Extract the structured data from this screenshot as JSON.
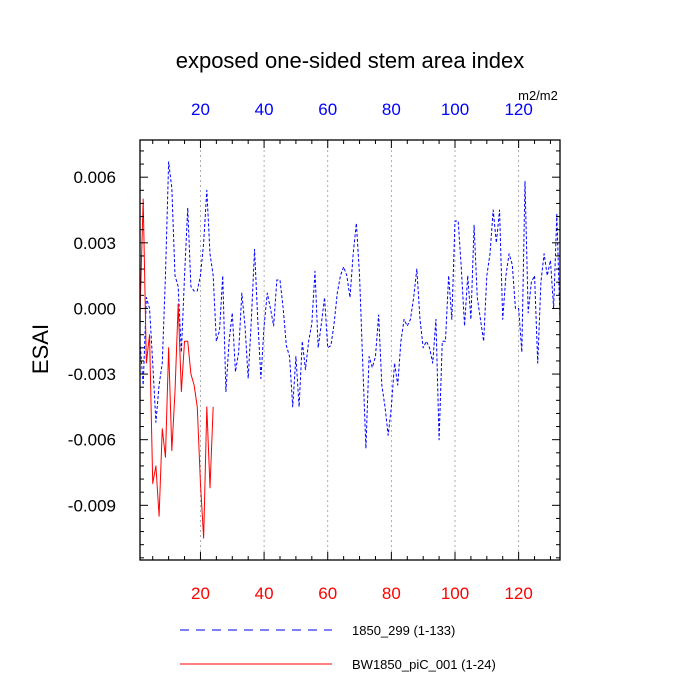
{
  "chart_data": {
    "type": "line",
    "title": "exposed one-sided stem area index",
    "ylabel": "ESAI",
    "units": "m2/m2",
    "xlim": [
      1,
      133
    ],
    "ylim": [
      -0.0115,
      0.0077
    ],
    "yticks": [
      0.006,
      0.003,
      0.0,
      -0.003,
      -0.006,
      -0.009
    ],
    "ytick_labels": [
      "0.006",
      "0.003",
      "0.000",
      "-0.003",
      "-0.006",
      "-0.009"
    ],
    "xticks": [
      20,
      40,
      60,
      80,
      100,
      120
    ],
    "xtick_labels": [
      "20",
      "40",
      "60",
      "80",
      "100",
      "120"
    ],
    "series": [
      {
        "name": "1850_299 (1-133)",
        "color": "#0000ff",
        "style": "dashed",
        "x": [
          1,
          2,
          3,
          4,
          5,
          6,
          7,
          8,
          9,
          10,
          11,
          12,
          13,
          14,
          15,
          16,
          17,
          18,
          19,
          20,
          21,
          22,
          23,
          24,
          25,
          26,
          27,
          28,
          29,
          30,
          31,
          32,
          33,
          34,
          35,
          36,
          37,
          38,
          39,
          40,
          41,
          42,
          43,
          44,
          45,
          46,
          47,
          48,
          49,
          50,
          51,
          52,
          53,
          54,
          55,
          56,
          57,
          58,
          59,
          60,
          61,
          62,
          63,
          64,
          65,
          66,
          67,
          68,
          69,
          70,
          71,
          72,
          73,
          74,
          75,
          76,
          77,
          78,
          79,
          80,
          81,
          82,
          83,
          84,
          85,
          86,
          87,
          88,
          89,
          90,
          91,
          92,
          93,
          94,
          95,
          96,
          97,
          98,
          99,
          100,
          101,
          102,
          103,
          104,
          105,
          106,
          107,
          108,
          109,
          110,
          111,
          112,
          113,
          114,
          115,
          116,
          117,
          118,
          119,
          120,
          121,
          122,
          123,
          124,
          125,
          126,
          127,
          128,
          129,
          130,
          131,
          132,
          133
        ],
        "values": [
          -0.0015,
          -0.0035,
          0.0005,
          0.0,
          -0.0025,
          -0.0052,
          -0.0035,
          -0.0025,
          0.0015,
          0.0067,
          0.0055,
          0.0015,
          0.001,
          -0.002,
          0.0015,
          0.0046,
          0.001,
          0.0008,
          0.0008,
          0.0015,
          0.003,
          0.0054,
          0.0025,
          0.0015,
          -0.0015,
          -0.001,
          0.0015,
          -0.0038,
          -0.0015,
          -0.0002,
          -0.0029,
          -0.002,
          0.0007,
          -0.0008,
          -0.0032,
          -0.0005,
          0.0027,
          -0.0005,
          -0.0032,
          -0.0008,
          0.0007,
          0.0,
          -0.0008,
          0.0013,
          0.0013,
          0.0,
          -0.0017,
          -0.0022,
          -0.0045,
          -0.0022,
          -0.0045,
          -0.0015,
          -0.0028,
          -0.0015,
          -0.0007,
          0.0017,
          -0.0018,
          -0.0007,
          0.0005,
          -0.0018,
          -0.0017,
          -0.0007,
          0.0007,
          0.0015,
          0.0019,
          0.0015,
          0.0005,
          0.0025,
          0.0039,
          0.0015,
          -0.0025,
          -0.0064,
          -0.0022,
          -0.0027,
          -0.0022,
          -0.0003,
          -0.0035,
          -0.0045,
          -0.0058,
          -0.0045,
          -0.0025,
          -0.0035,
          -0.0015,
          -0.0005,
          -0.0008,
          -0.0005,
          0.0005,
          0.0018,
          -0.0005,
          -0.0018,
          -0.0015,
          -0.0018,
          -0.0025,
          -0.0005,
          -0.006,
          -0.0015,
          -0.0015,
          0.0015,
          -0.0005,
          0.004,
          0.004,
          0.0018,
          -0.0008,
          0.0015,
          -0.0005,
          0.0038,
          0.0005,
          -0.0005,
          -0.0015,
          0.0015,
          0.0025,
          0.0045,
          0.003,
          0.0045,
          -0.0005,
          0.0015,
          0.0025,
          0.002,
          0.0,
          0.0,
          -0.002,
          0.0058,
          -0.0002,
          0.0012,
          0.0015,
          -0.0025,
          0.0012,
          0.0025,
          0.0015,
          0.0022,
          0.0,
          0.0043,
          -0.0005
        ]
      },
      {
        "name": "BW1850_piC_001 (1-24)",
        "color": "#ff0000",
        "style": "solid",
        "x": [
          1,
          2,
          3,
          4,
          5,
          6,
          7,
          8,
          9,
          10,
          11,
          12,
          13,
          14,
          15,
          16,
          17,
          18,
          19,
          20,
          21,
          22,
          23,
          24
        ],
        "values": [
          -0.0003,
          0.005,
          -0.0025,
          -0.0012,
          -0.008,
          -0.0072,
          -0.0095,
          -0.0055,
          -0.0068,
          -0.0018,
          -0.0065,
          -0.0038,
          0.0002,
          -0.0038,
          -0.0015,
          -0.0015,
          -0.003,
          -0.0035,
          -0.0045,
          -0.008,
          -0.0105,
          -0.0045,
          -0.0082,
          -0.0045
        ]
      }
    ],
    "legend": {
      "placement": "bottom",
      "entries": [
        "1850_299 (1-133)",
        "BW1850_piC_001 (1-24)"
      ]
    }
  }
}
